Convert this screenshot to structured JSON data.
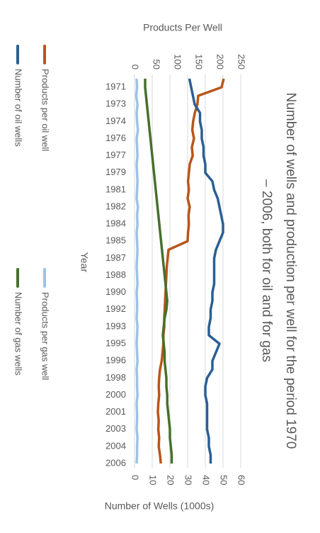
{
  "chart_data": {
    "type": "line",
    "title": "Number of wells and production per well for the period 1970 – 2006, both for oil and for gas",
    "xlabel": "Year",
    "ylabel": "Products Per Well",
    "y2label": "Number of Wells (1000s)",
    "categories": [
      null,
      "1971",
      null,
      "1973",
      null,
      "1974",
      null,
      "1976",
      null,
      "1977",
      null,
      "1979",
      null,
      "1981",
      null,
      "1982",
      null,
      "1984",
      null,
      "1985",
      null,
      "1987",
      null,
      "1988",
      null,
      "1990",
      null,
      "1992",
      null,
      "1993",
      null,
      "1995",
      null,
      "1996",
      null,
      "1998",
      null,
      "2000",
      null,
      "2001",
      null,
      "2003",
      null,
      "2004",
      null,
      "2006"
    ],
    "ylim": [
      0,
      250
    ],
    "yticks": [
      0,
      50,
      100,
      150,
      200,
      250
    ],
    "y2lim": [
      0,
      60
    ],
    "y2ticks": [
      0,
      10,
      20,
      30,
      40,
      50,
      60
    ],
    "grid": true,
    "legend": "bottom",
    "series": [
      {
        "name": "Products per oil well",
        "color": "#b8561b",
        "values": [
          210,
          205,
          150,
          148,
          142,
          138,
          136,
          140,
          135,
          137,
          130,
          128,
          126,
          128,
          125,
          130,
          127,
          128,
          126,
          125,
          80,
          78,
          76,
          75,
          74,
          73,
          72,
          71,
          70,
          70,
          68,
          68,
          66,
          64,
          60,
          58,
          57,
          58,
          56,
          55,
          57,
          56,
          58,
          57,
          60,
          62
        ]
      },
      {
        "name": "Products per gas well",
        "color": "#9dc3e6",
        "values": [
          5,
          6,
          4,
          7,
          5,
          6,
          8,
          5,
          6,
          7,
          5,
          6,
          7,
          6,
          5,
          8,
          6,
          7,
          5,
          6,
          7,
          6,
          5,
          6,
          7,
          5,
          6,
          6,
          5,
          7,
          6,
          5,
          6,
          7,
          5,
          6,
          6,
          7,
          5,
          6,
          6,
          5,
          7,
          6,
          6,
          5
        ]
      },
      {
        "name": "Number of oil wells",
        "color": "#2b5f93",
        "axis": "y2",
        "values": [
          31,
          32,
          33,
          34,
          37,
          37,
          38,
          38,
          39,
          39,
          40,
          40,
          44,
          45,
          47,
          48,
          49,
          50,
          50,
          48,
          46,
          45,
          45,
          45,
          45,
          44,
          44,
          43,
          43,
          42,
          42,
          48,
          46,
          44,
          44,
          41,
          40,
          40,
          41,
          41,
          41,
          41,
          42,
          42,
          43,
          43
        ]
      },
      {
        "name": "Number of gas wells",
        "color": "#47702d",
        "axis": "y2",
        "values": [
          6,
          6,
          6.5,
          7,
          7.5,
          8,
          8.5,
          9,
          9.5,
          10,
          10.5,
          11,
          11.5,
          12,
          12.5,
          13,
          13.5,
          14,
          14.5,
          15,
          15.5,
          16,
          16.5,
          17,
          17.5,
          18,
          18.5,
          18,
          17,
          16.5,
          16,
          16.5,
          17,
          17,
          17.5,
          18,
          18,
          18.5,
          18.5,
          19,
          19.5,
          20,
          20,
          20.5,
          21,
          21
        ]
      }
    ]
  }
}
